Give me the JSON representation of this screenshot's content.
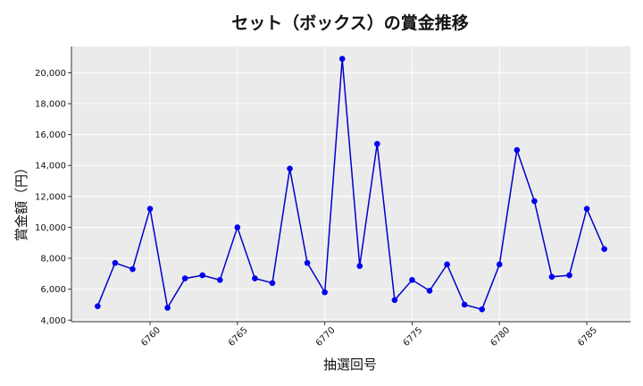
{
  "chart_data": {
    "type": "line",
    "title": "セット（ボックス）の賞金推移",
    "xlabel": "抽選回号",
    "ylabel": "賞金額（円）",
    "xlim": [
      6755.5,
      6787.5
    ],
    "ylim": [
      3900,
      21700
    ],
    "x_ticks": [
      6760,
      6765,
      6770,
      6775,
      6780,
      6785
    ],
    "x_tick_labels": [
      "6760",
      "6765",
      "6770",
      "6775",
      "6780",
      "6785"
    ],
    "y_ticks": [
      4000,
      6000,
      8000,
      10000,
      12000,
      14000,
      16000,
      18000,
      20000
    ],
    "y_tick_labels": [
      "4,000",
      "6,000",
      "8,000",
      "10,000",
      "12,000",
      "14,000",
      "16,000",
      "18,000",
      "20,000"
    ],
    "grid": true,
    "colors": {
      "line": "#0000cc",
      "marker": "#0000ee",
      "plot_bg": "#ebebeb",
      "grid": "#ffffff"
    },
    "series": [
      {
        "x": [
          6757,
          6758,
          6759,
          6760,
          6761,
          6762,
          6763,
          6764,
          6765,
          6766,
          6767,
          6768,
          6769,
          6770,
          6771,
          6772,
          6773,
          6774,
          6775,
          6776,
          6777,
          6778,
          6779,
          6780,
          6781,
          6782,
          6783,
          6784,
          6785,
          6786
        ],
        "values": [
          4900,
          7700,
          7300,
          11200,
          4800,
          6700,
          6900,
          6600,
          10000,
          6700,
          6400,
          13800,
          7700,
          5800,
          20900,
          7500,
          15400,
          5300,
          6600,
          5900,
          7600,
          5000,
          4700,
          7600,
          15000,
          11700,
          6800,
          6900,
          11200,
          8600
        ]
      }
    ]
  }
}
